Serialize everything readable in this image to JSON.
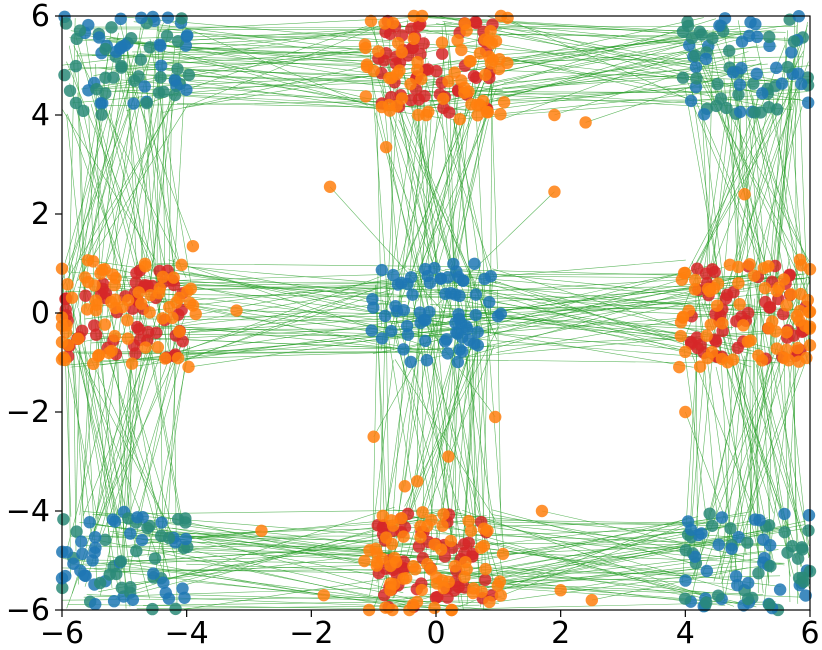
{
  "chart_data": {
    "type": "scatter",
    "title": "",
    "xlabel": "",
    "ylabel": "",
    "xlim": [
      -6,
      6
    ],
    "ylim": [
      -6,
      6
    ],
    "grid": false,
    "x_ticks": [
      -6,
      -4,
      -2,
      0,
      2,
      4,
      6
    ],
    "y_ticks": [
      -6,
      -4,
      -2,
      0,
      2,
      4,
      6
    ],
    "x_tick_labels": [
      "−6",
      "−4",
      "−2",
      "0",
      "2",
      "4",
      "6"
    ],
    "y_tick_labels": [
      "−6",
      "−4",
      "−2",
      "0",
      "2",
      "4",
      "6"
    ],
    "colors": {
      "blue": "#1f77b4",
      "teal": "#2a8a78",
      "red": "#d62728",
      "orange": "#ff7f0e",
      "link": "#2ca02c"
    },
    "series": [
      {
        "values": [
          [
            0,
            0
          ],
          [
            -5,
            5
          ],
          [
            5,
            5
          ],
          [
            -5,
            -5
          ],
          [
            5,
            -5
          ]
        ],
        "spread": 0.55,
        "color": "blue"
      },
      {
        "values": [
          [
            0,
            5
          ],
          [
            0,
            -5
          ],
          [
            -5,
            0
          ],
          [
            5,
            0
          ]
        ],
        "spread": 0.5,
        "color": "red"
      },
      {
        "values": [
          [
            0,
            5
          ],
          [
            0,
            -5
          ],
          [
            -5,
            0
          ],
          [
            5,
            0
          ]
        ],
        "spread": 0.55,
        "color": "orange"
      }
    ],
    "outliers": [
      [
        2.4,
        3.85
      ],
      [
        1.9,
        2.45
      ],
      [
        -1.7,
        2.55
      ],
      [
        -1.0,
        -2.5
      ],
      [
        -0.8,
        3.35
      ],
      [
        0.2,
        -2.9
      ],
      [
        0.95,
        -2.1
      ],
      [
        -0.5,
        -3.5
      ],
      [
        -0.3,
        -3.4
      ],
      [
        -3.2,
        0.05
      ],
      [
        -3.9,
        1.35
      ],
      [
        4.0,
        -2.0
      ],
      [
        4.95,
        2.4
      ],
      [
        1.7,
        -4.0
      ],
      [
        -2.8,
        -4.4
      ],
      [
        -1.8,
        -5.7
      ],
      [
        2.0,
        -5.6
      ],
      [
        2.5,
        -5.8
      ],
      [
        1.9,
        4.0
      ]
    ]
  }
}
